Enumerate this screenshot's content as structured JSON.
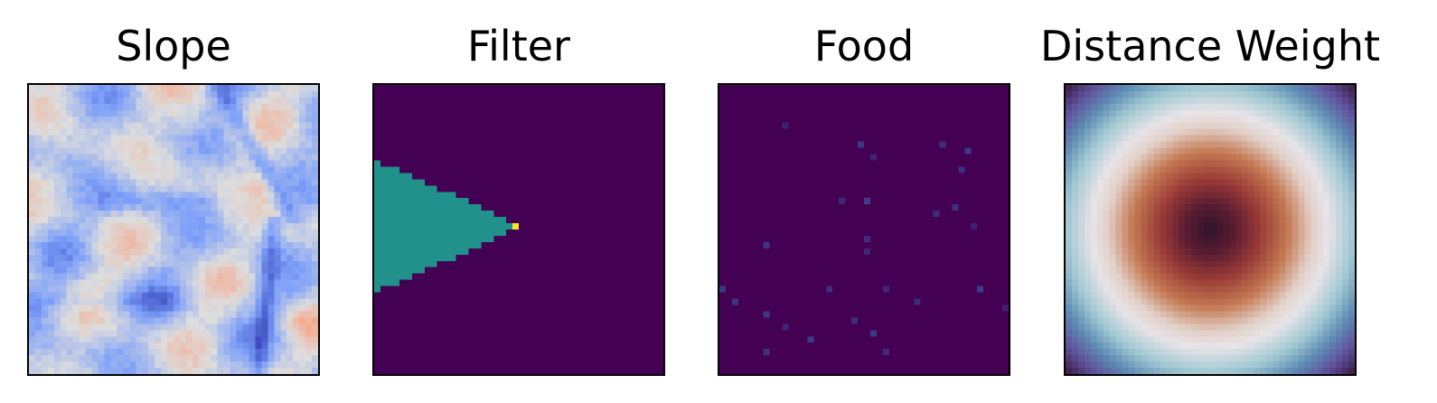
{
  "chart_data": [
    {
      "type": "heatmap",
      "title": "Slope",
      "colormap": "coolwarm",
      "grid_size": [
        46,
        46
      ],
      "description_of_values": "mostly light blue with darker blue ridges and a few orange patches",
      "axes": "off"
    },
    {
      "type": "heatmap",
      "title": "Filter",
      "colormap": "viridis",
      "grid_size": [
        46,
        46
      ],
      "background_color": "#440154",
      "cone_color": "#21918c",
      "point_color": "#fde725",
      "axes": "off"
    },
    {
      "type": "heatmap",
      "title": "Food",
      "colormap": "viridis",
      "grid_size": [
        46,
        46
      ],
      "background_color": "#440154",
      "dot_color": "#3b3f8a",
      "axes": "off"
    },
    {
      "type": "heatmap",
      "title": "Distance Weight",
      "colormap": "twilight_shifted",
      "grid_size": [
        46,
        46
      ],
      "description_of_values": "radial pattern: dark center, orange-red ring, white ring, teal then purple at corners",
      "axes": "off"
    }
  ]
}
